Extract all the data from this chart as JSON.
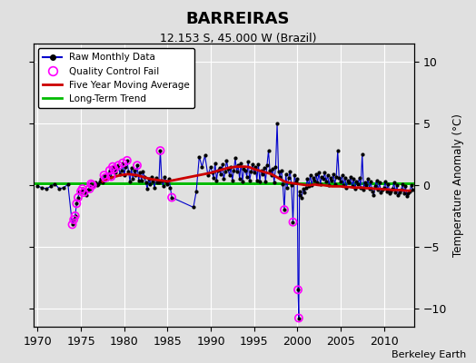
{
  "title": "BARREIRAS",
  "subtitle": "12.153 S, 45.000 W (Brazil)",
  "ylabel": "Temperature Anomaly (°C)",
  "credit": "Berkeley Earth",
  "xlim": [
    1969.5,
    2013.5
  ],
  "ylim": [
    -11.5,
    11.5
  ],
  "yticks": [
    -10,
    -5,
    0,
    5,
    10
  ],
  "xticks": [
    1970,
    1975,
    1980,
    1985,
    1990,
    1995,
    2000,
    2005,
    2010
  ],
  "bg_color": "#e0e0e0",
  "raw_color": "#0000cc",
  "dot_color": "#000000",
  "qc_color": "#ff00ff",
  "moving_avg_color": "#cc0000",
  "trend_color": "#00bb00",
  "trend_y": 0.15,
  "raw_data": [
    [
      1970.0,
      -0.1
    ],
    [
      1970.5,
      -0.2
    ],
    [
      1971.0,
      -0.3
    ],
    [
      1971.5,
      -0.1
    ],
    [
      1972.0,
      0.1
    ],
    [
      1972.5,
      -0.3
    ],
    [
      1973.0,
      -0.2
    ],
    [
      1973.5,
      0.05
    ],
    [
      1974.0,
      -3.2
    ],
    [
      1974.17,
      -2.8
    ],
    [
      1974.33,
      -2.5
    ],
    [
      1974.5,
      -1.5
    ],
    [
      1974.67,
      -1.0
    ],
    [
      1974.83,
      -0.5
    ],
    [
      1975.0,
      -0.5
    ],
    [
      1975.17,
      -0.3
    ],
    [
      1975.33,
      -0.6
    ],
    [
      1975.5,
      -0.5
    ],
    [
      1975.67,
      -0.8
    ],
    [
      1975.83,
      -0.4
    ],
    [
      1976.0,
      -0.3
    ],
    [
      1976.17,
      0.1
    ],
    [
      1976.33,
      0.0
    ],
    [
      1976.5,
      -0.1
    ],
    [
      1976.67,
      0.2
    ],
    [
      1976.83,
      0.0
    ],
    [
      1977.0,
      0.1
    ],
    [
      1977.17,
      0.3
    ],
    [
      1977.33,
      0.5
    ],
    [
      1977.5,
      0.2
    ],
    [
      1977.67,
      0.8
    ],
    [
      1977.83,
      0.6
    ],
    [
      1978.0,
      0.5
    ],
    [
      1978.17,
      0.9
    ],
    [
      1978.33,
      1.2
    ],
    [
      1978.5,
      0.7
    ],
    [
      1978.67,
      1.5
    ],
    [
      1978.83,
      1.3
    ],
    [
      1979.0,
      1.0
    ],
    [
      1979.17,
      1.4
    ],
    [
      1979.33,
      1.6
    ],
    [
      1979.5,
      0.9
    ],
    [
      1979.67,
      1.2
    ],
    [
      1979.83,
      1.8
    ],
    [
      1980.0,
      0.8
    ],
    [
      1980.17,
      1.5
    ],
    [
      1980.33,
      2.0
    ],
    [
      1980.5,
      1.1
    ],
    [
      1980.67,
      0.3
    ],
    [
      1980.83,
      1.4
    ],
    [
      1981.0,
      0.5
    ],
    [
      1981.17,
      1.2
    ],
    [
      1981.33,
      0.8
    ],
    [
      1981.5,
      1.6
    ],
    [
      1981.67,
      0.4
    ],
    [
      1981.83,
      1.0
    ],
    [
      1982.0,
      0.4
    ],
    [
      1982.17,
      1.1
    ],
    [
      1982.33,
      0.7
    ],
    [
      1982.5,
      0.2
    ],
    [
      1982.67,
      -0.3
    ],
    [
      1982.83,
      0.5
    ],
    [
      1983.0,
      0.1
    ],
    [
      1983.17,
      0.7
    ],
    [
      1983.33,
      0.3
    ],
    [
      1983.5,
      -0.2
    ],
    [
      1983.67,
      0.6
    ],
    [
      1983.83,
      0.2
    ],
    [
      1984.0,
      0.2
    ],
    [
      1984.17,
      2.8
    ],
    [
      1984.33,
      0.4
    ],
    [
      1984.5,
      -0.1
    ],
    [
      1984.67,
      0.7
    ],
    [
      1984.83,
      0.3
    ],
    [
      1985.0,
      0.1
    ],
    [
      1985.17,
      0.5
    ],
    [
      1985.33,
      -0.2
    ],
    [
      1985.5,
      -1.0
    ],
    [
      1988.0,
      -1.8
    ],
    [
      1988.33,
      -0.5
    ],
    [
      1988.67,
      2.3
    ],
    [
      1989.0,
      1.5
    ],
    [
      1989.33,
      2.4
    ],
    [
      1989.67,
      0.8
    ],
    [
      1990.0,
      1.5
    ],
    [
      1990.17,
      1.0
    ],
    [
      1990.33,
      0.6
    ],
    [
      1990.5,
      1.8
    ],
    [
      1990.67,
      0.4
    ],
    [
      1990.83,
      1.2
    ],
    [
      1991.0,
      1.4
    ],
    [
      1991.17,
      0.9
    ],
    [
      1991.33,
      1.7
    ],
    [
      1991.5,
      0.5
    ],
    [
      1991.67,
      1.1
    ],
    [
      1991.83,
      2.0
    ],
    [
      1992.0,
      1.3
    ],
    [
      1992.17,
      0.8
    ],
    [
      1992.33,
      1.5
    ],
    [
      1992.5,
      0.4
    ],
    [
      1992.67,
      1.2
    ],
    [
      1992.83,
      2.2
    ],
    [
      1993.0,
      1.1
    ],
    [
      1993.17,
      1.6
    ],
    [
      1993.33,
      0.5
    ],
    [
      1993.5,
      1.8
    ],
    [
      1993.67,
      0.3
    ],
    [
      1993.83,
      1.3
    ],
    [
      1994.0,
      1.2
    ],
    [
      1994.17,
      0.7
    ],
    [
      1994.33,
      1.9
    ],
    [
      1994.5,
      0.4
    ],
    [
      1994.67,
      1.1
    ],
    [
      1994.83,
      1.7
    ],
    [
      1995.0,
      1.0
    ],
    [
      1995.17,
      1.5
    ],
    [
      1995.33,
      0.4
    ],
    [
      1995.5,
      1.7
    ],
    [
      1995.67,
      0.3
    ],
    [
      1995.83,
      1.2
    ],
    [
      1996.0,
      0.9
    ],
    [
      1996.17,
      1.4
    ],
    [
      1996.33,
      0.3
    ],
    [
      1996.5,
      1.6
    ],
    [
      1996.67,
      2.8
    ],
    [
      1996.83,
      1.2
    ],
    [
      1997.0,
      0.8
    ],
    [
      1997.17,
      1.3
    ],
    [
      1997.33,
      0.2
    ],
    [
      1997.5,
      1.5
    ],
    [
      1997.67,
      5.0
    ],
    [
      1997.83,
      1.1
    ],
    [
      1998.0,
      0.7
    ],
    [
      1998.17,
      1.2
    ],
    [
      1998.33,
      0.1
    ],
    [
      1998.5,
      -2.0
    ],
    [
      1998.67,
      0.9
    ],
    [
      1998.83,
      -0.2
    ],
    [
      1999.0,
      0.6
    ],
    [
      1999.17,
      1.1
    ],
    [
      1999.33,
      0.0
    ],
    [
      1999.5,
      -3.0
    ],
    [
      1999.67,
      0.8
    ],
    [
      1999.83,
      0.3
    ],
    [
      2000.0,
      0.5
    ],
    [
      2000.08,
      -8.5
    ],
    [
      2000.17,
      -10.8
    ],
    [
      2000.25,
      -0.5
    ],
    [
      2000.33,
      -0.8
    ],
    [
      2000.5,
      -1.0
    ],
    [
      2000.67,
      -0.3
    ],
    [
      2000.83,
      -0.6
    ],
    [
      2001.0,
      -0.2
    ],
    [
      2001.17,
      0.5
    ],
    [
      2001.33,
      -0.1
    ],
    [
      2001.5,
      0.8
    ],
    [
      2001.67,
      0.0
    ],
    [
      2001.83,
      0.6
    ],
    [
      2002.0,
      0.4
    ],
    [
      2002.17,
      0.9
    ],
    [
      2002.33,
      0.2
    ],
    [
      2002.5,
      1.0
    ],
    [
      2002.67,
      0.1
    ],
    [
      2002.83,
      0.7
    ],
    [
      2003.0,
      0.5
    ],
    [
      2003.17,
      1.0
    ],
    [
      2003.33,
      0.3
    ],
    [
      2003.5,
      0.8
    ],
    [
      2003.67,
      0.0
    ],
    [
      2003.83,
      0.6
    ],
    [
      2004.0,
      0.4
    ],
    [
      2004.17,
      0.9
    ],
    [
      2004.33,
      0.1
    ],
    [
      2004.5,
      0.7
    ],
    [
      2004.67,
      2.8
    ],
    [
      2004.83,
      0.6
    ],
    [
      2005.0,
      0.3
    ],
    [
      2005.17,
      0.8
    ],
    [
      2005.33,
      0.0
    ],
    [
      2005.5,
      0.6
    ],
    [
      2005.67,
      -0.2
    ],
    [
      2005.83,
      0.4
    ],
    [
      2006.0,
      0.2
    ],
    [
      2006.17,
      0.7
    ],
    [
      2006.33,
      -0.1
    ],
    [
      2006.5,
      0.5
    ],
    [
      2006.67,
      -0.3
    ],
    [
      2006.83,
      0.3
    ],
    [
      2007.0,
      0.1
    ],
    [
      2007.17,
      0.6
    ],
    [
      2007.33,
      -0.2
    ],
    [
      2007.5,
      2.5
    ],
    [
      2007.67,
      -0.4
    ],
    [
      2007.83,
      0.2
    ],
    [
      2008.0,
      0.0
    ],
    [
      2008.17,
      0.5
    ],
    [
      2008.33,
      -0.3
    ],
    [
      2008.5,
      0.3
    ],
    [
      2008.67,
      -0.5
    ],
    [
      2008.83,
      -0.8
    ],
    [
      2009.0,
      -0.1
    ],
    [
      2009.17,
      0.4
    ],
    [
      2009.33,
      -0.4
    ],
    [
      2009.5,
      0.2
    ],
    [
      2009.67,
      -0.6
    ],
    [
      2009.83,
      -0.4
    ],
    [
      2010.0,
      -0.2
    ],
    [
      2010.17,
      0.3
    ],
    [
      2010.33,
      -0.5
    ],
    [
      2010.5,
      0.1
    ],
    [
      2010.67,
      -0.7
    ],
    [
      2010.83,
      -0.5
    ],
    [
      2011.0,
      -0.3
    ],
    [
      2011.17,
      0.2
    ],
    [
      2011.33,
      -0.6
    ],
    [
      2011.5,
      0.0
    ],
    [
      2011.67,
      -0.8
    ],
    [
      2011.83,
      -0.6
    ],
    [
      2012.0,
      -0.4
    ],
    [
      2012.17,
      0.1
    ],
    [
      2012.33,
      -0.7
    ],
    [
      2012.5,
      -0.1
    ],
    [
      2012.67,
      -0.9
    ],
    [
      2012.83,
      -0.7
    ],
    [
      2013.0,
      -0.5
    ],
    [
      2013.17,
      0.0
    ],
    [
      2013.33,
      -0.4
    ]
  ],
  "qc_fail_points": [
    [
      1974.0,
      -3.2
    ],
    [
      1974.17,
      -2.8
    ],
    [
      1974.33,
      -2.5
    ],
    [
      1974.5,
      -1.5
    ],
    [
      1974.67,
      -1.0
    ],
    [
      1975.0,
      -0.5
    ],
    [
      1975.17,
      -0.3
    ],
    [
      1975.33,
      -0.6
    ],
    [
      1976.0,
      -0.3
    ],
    [
      1976.17,
      0.1
    ],
    [
      1976.33,
      0.0
    ],
    [
      1977.67,
      0.8
    ],
    [
      1977.83,
      0.6
    ],
    [
      1978.33,
      1.2
    ],
    [
      1978.5,
      0.7
    ],
    [
      1978.67,
      1.5
    ],
    [
      1978.83,
      1.3
    ],
    [
      1979.33,
      1.6
    ],
    [
      1979.83,
      1.8
    ],
    [
      1980.33,
      2.0
    ],
    [
      1981.5,
      1.6
    ],
    [
      1984.17,
      2.8
    ],
    [
      1985.5,
      -1.0
    ],
    [
      1998.5,
      -2.0
    ],
    [
      1999.5,
      -3.0
    ],
    [
      2000.08,
      -8.5
    ],
    [
      2000.17,
      -10.8
    ]
  ],
  "moving_avg": [
    [
      1977.5,
      0.3
    ],
    [
      1978.0,
      0.5
    ],
    [
      1978.5,
      0.6
    ],
    [
      1979.0,
      0.7
    ],
    [
      1979.5,
      0.8
    ],
    [
      1980.0,
      0.85
    ],
    [
      1980.5,
      0.9
    ],
    [
      1981.0,
      0.85
    ],
    [
      1981.5,
      0.8
    ],
    [
      1982.0,
      0.7
    ],
    [
      1982.5,
      0.6
    ],
    [
      1983.0,
      0.5
    ],
    [
      1983.5,
      0.45
    ],
    [
      1984.0,
      0.4
    ],
    [
      1984.5,
      0.35
    ],
    [
      1985.0,
      0.3
    ],
    [
      1990.0,
      1.0
    ],
    [
      1990.5,
      1.1
    ],
    [
      1991.0,
      1.2
    ],
    [
      1991.5,
      1.3
    ],
    [
      1992.0,
      1.4
    ],
    [
      1992.5,
      1.45
    ],
    [
      1993.0,
      1.5
    ],
    [
      1993.5,
      1.5
    ],
    [
      1994.0,
      1.5
    ],
    [
      1994.5,
      1.45
    ],
    [
      1995.0,
      1.3
    ],
    [
      1995.5,
      1.2
    ],
    [
      1996.0,
      1.1
    ],
    [
      1996.5,
      1.0
    ],
    [
      1997.0,
      0.9
    ],
    [
      1997.5,
      0.7
    ],
    [
      1998.0,
      0.5
    ],
    [
      1998.5,
      0.3
    ],
    [
      1999.0,
      0.2
    ],
    [
      1999.5,
      0.15
    ],
    [
      2000.0,
      0.1
    ],
    [
      2000.5,
      0.05
    ],
    [
      2001.0,
      0.0
    ],
    [
      2001.5,
      0.0
    ],
    [
      2002.0,
      0.05
    ],
    [
      2002.5,
      0.0
    ],
    [
      2003.0,
      0.0
    ],
    [
      2003.5,
      -0.05
    ],
    [
      2004.0,
      -0.1
    ],
    [
      2004.5,
      -0.1
    ],
    [
      2005.0,
      -0.1
    ],
    [
      2005.5,
      -0.15
    ],
    [
      2006.0,
      -0.15
    ],
    [
      2006.5,
      -0.2
    ],
    [
      2007.0,
      -0.2
    ],
    [
      2007.5,
      -0.2
    ],
    [
      2008.0,
      -0.25
    ],
    [
      2008.5,
      -0.25
    ],
    [
      2009.0,
      -0.3
    ],
    [
      2009.5,
      -0.3
    ],
    [
      2010.0,
      -0.35
    ],
    [
      2010.5,
      -0.35
    ],
    [
      2011.0,
      -0.4
    ],
    [
      2011.5,
      -0.4
    ],
    [
      2012.0,
      -0.4
    ],
    [
      2012.5,
      -0.45
    ],
    [
      2013.0,
      -0.45
    ]
  ]
}
